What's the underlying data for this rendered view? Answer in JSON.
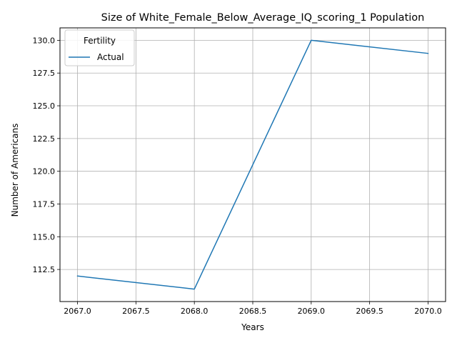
{
  "chart_data": {
    "type": "line",
    "title": "Size of White_Female_Below_Average_IQ_scoring_1 Population",
    "xlabel": "Years",
    "ylabel": "Number of Americans",
    "x": [
      2067,
      2068,
      2069,
      2070
    ],
    "series": [
      {
        "name": "Actual",
        "values": [
          112,
          111,
          130,
          129
        ],
        "color": "#1f77b4"
      }
    ],
    "xlim": [
      2066.85,
      2070.15
    ],
    "ylim": [
      110.05,
      130.95
    ],
    "xticks": [
      2067.0,
      2067.5,
      2068.0,
      2068.5,
      2069.0,
      2069.5,
      2070.0
    ],
    "xtick_labels": [
      "2067.0",
      "2067.5",
      "2068.0",
      "2068.5",
      "2069.0",
      "2069.5",
      "2070.0"
    ],
    "yticks": [
      112.5,
      115.0,
      117.5,
      120.0,
      122.5,
      125.0,
      127.5,
      130.0
    ],
    "ytick_labels": [
      "112.5",
      "115.0",
      "117.5",
      "120.0",
      "122.5",
      "125.0",
      "127.5",
      "130.0"
    ],
    "grid": true,
    "legend": {
      "title": "Fertility",
      "placement": "upper-left"
    }
  }
}
